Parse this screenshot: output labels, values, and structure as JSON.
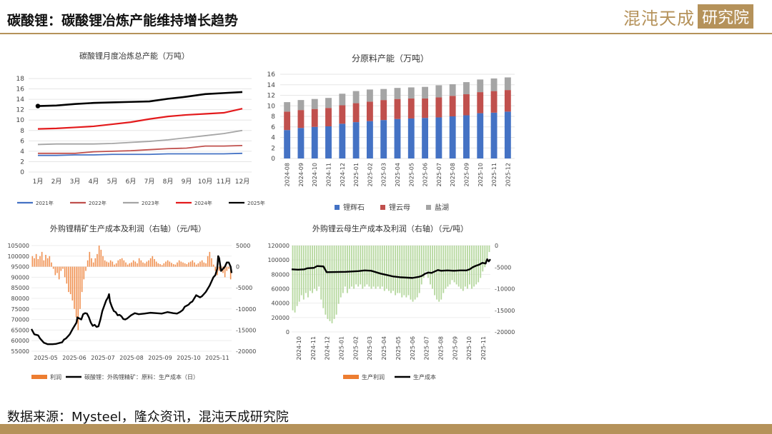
{
  "header": {
    "title": "碳酸锂：碳酸锂冶炼产能维持增长趋势",
    "logo_text": "混沌天成",
    "logo_box": "研究院"
  },
  "footer": {
    "source": "数据来源：Mysteel，隆众资讯，混沌天成研究院"
  },
  "colors": {
    "brand": "#b5925a",
    "blue": "#4472c4",
    "red": "#c0504d",
    "gray": "#a5a5a5",
    "orange": "#ed7d31",
    "green": "#a9d18e",
    "black": "#000000"
  },
  "chart_data": [
    {
      "type": "line",
      "title": "碳酸锂月度冶炼总产能（万吨）",
      "categories": [
        "1月",
        "2月",
        "3月",
        "4月",
        "5月",
        "6月",
        "7月",
        "8月",
        "9月",
        "10月",
        "11月",
        "12月"
      ],
      "ylim": [
        0,
        18
      ],
      "yticks": [
        0,
        2,
        4,
        6,
        8,
        10,
        12,
        14,
        16,
        18
      ],
      "legend_position": "bottom",
      "series": [
        {
          "name": "2021年",
          "color": "#4472c4",
          "values": [
            3.2,
            3.2,
            3.3,
            3.3,
            3.4,
            3.4,
            3.4,
            3.5,
            3.5,
            3.5,
            3.5,
            3.6
          ]
        },
        {
          "name": "2022年",
          "color": "#c0504d",
          "values": [
            3.6,
            3.6,
            3.6,
            3.9,
            4.0,
            4.1,
            4.3,
            4.5,
            4.6,
            5.0,
            5.0,
            5.1
          ]
        },
        {
          "name": "2023年",
          "color": "#a5a5a5",
          "values": [
            5.3,
            5.4,
            5.4,
            5.4,
            5.5,
            5.7,
            5.9,
            6.2,
            6.6,
            7.0,
            7.4,
            8.0
          ]
        },
        {
          "name": "2024年",
          "color": "#e31a1c",
          "values": [
            8.3,
            8.4,
            8.6,
            8.8,
            9.2,
            9.6,
            10.2,
            10.7,
            11.0,
            11.2,
            11.4,
            12.2
          ]
        },
        {
          "name": "2025年",
          "color": "#000000",
          "values": [
            12.7,
            12.8,
            13.1,
            13.3,
            13.4,
            13.5,
            13.6,
            14.1,
            14.5,
            15.0,
            15.2,
            15.4
          ]
        }
      ]
    },
    {
      "type": "bar",
      "stacked": true,
      "title": "分原料产能（万吨）",
      "categories": [
        "2024-08",
        "2024-09",
        "2024-10",
        "2024-11",
        "2024-12",
        "2025-01",
        "2025-02",
        "2025-03",
        "2025-04",
        "2025-05",
        "2025-06",
        "2025-07",
        "2025-08",
        "2025-09",
        "2025-10",
        "2025-11",
        "2025-12"
      ],
      "ylim": [
        0,
        16
      ],
      "yticks": [
        0,
        2,
        4,
        6,
        8,
        10,
        12,
        14,
        16
      ],
      "legend_position": "bottom",
      "series": [
        {
          "name": "锂辉石",
          "color": "#4472c4",
          "values": [
            5.4,
            5.8,
            6.0,
            6.1,
            6.6,
            6.9,
            7.1,
            7.3,
            7.5,
            7.6,
            7.7,
            7.8,
            8.0,
            8.2,
            8.6,
            8.7,
            8.9
          ]
        },
        {
          "name": "锂云母",
          "color": "#c0504d",
          "values": [
            3.5,
            3.4,
            3.4,
            3.5,
            3.5,
            3.6,
            3.7,
            3.8,
            3.8,
            3.8,
            3.7,
            3.8,
            3.9,
            4.0,
            4.0,
            4.1,
            4.1
          ]
        },
        {
          "name": "盐湖",
          "color": "#a5a5a5",
          "values": [
            1.8,
            1.9,
            1.9,
            1.9,
            2.2,
            2.3,
            2.3,
            2.1,
            2.1,
            2.1,
            2.2,
            2.3,
            2.2,
            2.3,
            2.4,
            2.4,
            2.4
          ]
        }
      ]
    },
    {
      "type": "line",
      "title": "外购锂精矿生产成本及利润（右轴）（元/吨）",
      "x_ticks": [
        "2025-05",
        "2025-06",
        "2025-07",
        "2025-08",
        "2025-09",
        "2025-10",
        "2025-11"
      ],
      "ylim": [
        55000,
        105000
      ],
      "yticks": [
        55000,
        60000,
        65000,
        70000,
        75000,
        80000,
        85000,
        90000,
        95000,
        100000,
        105000
      ],
      "y2lim": [
        -20000,
        5000
      ],
      "y2ticks": [
        -20000,
        -15000,
        -10000,
        -5000,
        0,
        5000
      ],
      "legend_position": "bottom",
      "series": [
        {
          "name": "利润",
          "color": "#ed7d31",
          "axis": "right",
          "kind": "bar",
          "values": [
            2500,
            2000,
            3000,
            1800,
            2500,
            3500,
            1500,
            2800,
            2000,
            2500,
            1000,
            -500,
            -2000,
            -1500,
            -3000,
            -1000,
            -500,
            -2500,
            -4000,
            -6000,
            -6500,
            -8000,
            -10000,
            -12000,
            -15000,
            -10000,
            -6000,
            -3000,
            -1000,
            1500,
            3500,
            2000,
            1000,
            2000,
            3000,
            5000,
            4000,
            2500,
            1500,
            1200,
            1000,
            1500,
            1200,
            500,
            800,
            1500,
            1800,
            2000,
            1500,
            1000,
            500,
            800,
            1000,
            1500,
            1200,
            800,
            2000,
            1500,
            1000,
            800,
            1200,
            1500,
            2000,
            2500,
            1800,
            1200,
            800,
            600,
            400,
            800,
            1200,
            1500,
            1200,
            900,
            600,
            500,
            1000,
            1500,
            1200,
            1000,
            800,
            600,
            1000,
            1200,
            1500,
            1000,
            500,
            800,
            1200,
            1500,
            1000,
            800,
            2500,
            3500,
            2000,
            500,
            -1000,
            -2000,
            -1000,
            -500,
            -1500,
            -2500,
            -1000,
            -500,
            -3000
          ]
        },
        {
          "name": "碳酸锂：外购锂精矿：原料：生产成本（日）",
          "color": "#000000",
          "axis": "left",
          "points": [
            [
              0,
              65500
            ],
            [
              3,
              63000
            ],
            [
              7,
              62500
            ],
            [
              9,
              61000
            ],
            [
              13,
              59000
            ],
            [
              17,
              58300
            ],
            [
              22,
              58300
            ],
            [
              26,
              58500
            ],
            [
              30,
              59000
            ],
            [
              32,
              59200
            ],
            [
              34,
              60500
            ],
            [
              36,
              61000
            ],
            [
              38,
              62000
            ],
            [
              40,
              63000
            ],
            [
              43,
              65500
            ],
            [
              45,
              67000
            ],
            [
              47,
              68500
            ],
            [
              48,
              71000
            ],
            [
              50,
              70500
            ],
            [
              52,
              70000
            ],
            [
              54,
              72500
            ],
            [
              56,
              73000
            ],
            [
              58,
              72800
            ],
            [
              60,
              71000
            ],
            [
              62,
              68500
            ],
            [
              64,
              67000
            ],
            [
              66,
              67500
            ],
            [
              68,
              66500
            ],
            [
              70,
              66800
            ],
            [
              72,
              70000
            ],
            [
              74,
              74000
            ],
            [
              76,
              76500
            ],
            [
              78,
              79000
            ],
            [
              80,
              80500
            ],
            [
              81,
              82000
            ],
            [
              82,
              78500
            ],
            [
              84,
              76000
            ],
            [
              86,
              74000
            ],
            [
              88,
              73500
            ],
            [
              90,
              72000
            ],
            [
              92,
              72200
            ],
            [
              94,
              71500
            ],
            [
              96,
              70200
            ],
            [
              98,
              70000
            ],
            [
              100,
              70500
            ],
            [
              104,
              72000
            ],
            [
              108,
              73000
            ],
            [
              112,
              72500
            ],
            [
              118,
              72800
            ],
            [
              124,
              73200
            ],
            [
              130,
              73000
            ],
            [
              136,
              72800
            ],
            [
              142,
              73500
            ],
            [
              148,
              73000
            ],
            [
              152,
              72800
            ],
            [
              155,
              73500
            ],
            [
              158,
              74500
            ],
            [
              160,
              76000
            ],
            [
              162,
              76500
            ],
            [
              164,
              77000
            ],
            [
              166,
              78000
            ],
            [
              168,
              78500
            ],
            [
              170,
              80000
            ],
            [
              172,
              81500
            ],
            [
              174,
              81000
            ],
            [
              176,
              80500
            ],
            [
              178,
              81000
            ],
            [
              182,
              83000
            ],
            [
              186,
              86000
            ],
            [
              188,
              88000
            ],
            [
              190,
              90000
            ],
            [
              192,
              91000
            ],
            [
              194,
              94000
            ],
            [
              195,
              100000
            ],
            [
              196,
              99000
            ],
            [
              198,
              93000
            ],
            [
              200,
              94000
            ],
            [
              202,
              95000
            ],
            [
              204,
              97000
            ],
            [
              206,
              97000
            ],
            [
              208,
              95000
            ],
            [
              209,
              92000
            ]
          ]
        }
      ]
    },
    {
      "type": "line",
      "title": "外购锂云母生产成本及利润（右轴）（元/吨）",
      "x_ticks": [
        "2024-10",
        "2024-11",
        "2024-12",
        "2025-01",
        "2025-02",
        "2025-03",
        "2025-04",
        "2025-05",
        "2025-06",
        "2025-07",
        "2025-08",
        "2025-09",
        "2025-10",
        "2025-11"
      ],
      "ylim": [
        0,
        120000
      ],
      "yticks": [
        0,
        20000,
        40000,
        60000,
        80000,
        100000,
        120000
      ],
      "y2lim": [
        -20000,
        0
      ],
      "y2ticks": [
        -20000,
        -15000,
        -10000,
        -5000,
        0
      ],
      "legend_position": "bottom",
      "series": [
        {
          "name": "生产利润",
          "color": "#a9d18e",
          "axis": "right",
          "kind": "bar",
          "legend_color": "#ed7d31",
          "values": [
            -15000,
            -15500,
            -14000,
            -13000,
            -11500,
            -12500,
            -11000,
            -12000,
            -10500,
            -11000,
            -10000,
            -10500,
            -9500,
            -12500,
            -14500,
            -16000,
            -17000,
            -17500,
            -18000,
            -17000,
            -16000,
            -13500,
            -12000,
            -11000,
            -9500,
            -11000,
            -10000,
            -9500,
            -10000,
            -9000,
            -9500,
            -9000,
            -10000,
            -9500,
            -9000,
            -9500,
            -10000,
            -9500,
            -10000,
            -9500,
            -10000,
            -9500,
            -10500,
            -10000,
            -10500,
            -11000,
            -10500,
            -11500,
            -11000,
            -11000,
            -12000,
            -11500,
            -12000,
            -11500,
            -12500,
            -13000,
            -12500,
            -12000,
            -11000,
            -9000,
            -7500,
            -6000,
            -7500,
            -9000,
            -10000,
            -11500,
            -12500,
            -13000,
            -12500,
            -11000,
            -10000,
            -9500,
            -9000,
            -8000,
            -8500,
            -9000,
            -9500,
            -10000,
            -10500,
            -9500,
            -10000,
            -9000,
            -10000,
            -9500,
            -9000,
            -8500,
            -7500,
            -6000,
            -5000,
            -3500,
            -1500
          ]
        },
        {
          "name": "生产成本",
          "color": "#000000",
          "axis": "left",
          "points": [
            [
              0,
              87000
            ],
            [
              4,
              86500
            ],
            [
              8,
              87000
            ],
            [
              10,
              88500
            ],
            [
              14,
              89000
            ],
            [
              16,
              91500
            ],
            [
              20,
              91000
            ],
            [
              22,
              83000
            ],
            [
              28,
              83200
            ],
            [
              34,
              83500
            ],
            [
              38,
              84000
            ],
            [
              42,
              84500
            ],
            [
              46,
              85500
            ],
            [
              50,
              85000
            ],
            [
              53,
              83000
            ],
            [
              56,
              81000
            ],
            [
              60,
              79000
            ],
            [
              64,
              77000
            ],
            [
              68,
              76000
            ],
            [
              72,
              75500
            ],
            [
              76,
              75000
            ],
            [
              80,
              76500
            ],
            [
              82,
              78000
            ],
            [
              84,
              81000
            ],
            [
              86,
              82500
            ],
            [
              88,
              82000
            ],
            [
              90,
              84000
            ],
            [
              92,
              86000
            ],
            [
              94,
              85000
            ],
            [
              98,
              85500
            ],
            [
              102,
              85000
            ],
            [
              106,
              85500
            ],
            [
              110,
              85500
            ],
            [
              112,
              87000
            ],
            [
              114,
              90000
            ],
            [
              116,
              92000
            ],
            [
              118,
              93500
            ],
            [
              120,
              96000
            ],
            [
              122,
              95000
            ],
            [
              123,
              101000
            ],
            [
              124,
              98000
            ],
            [
              125,
              101000
            ]
          ]
        }
      ]
    }
  ]
}
